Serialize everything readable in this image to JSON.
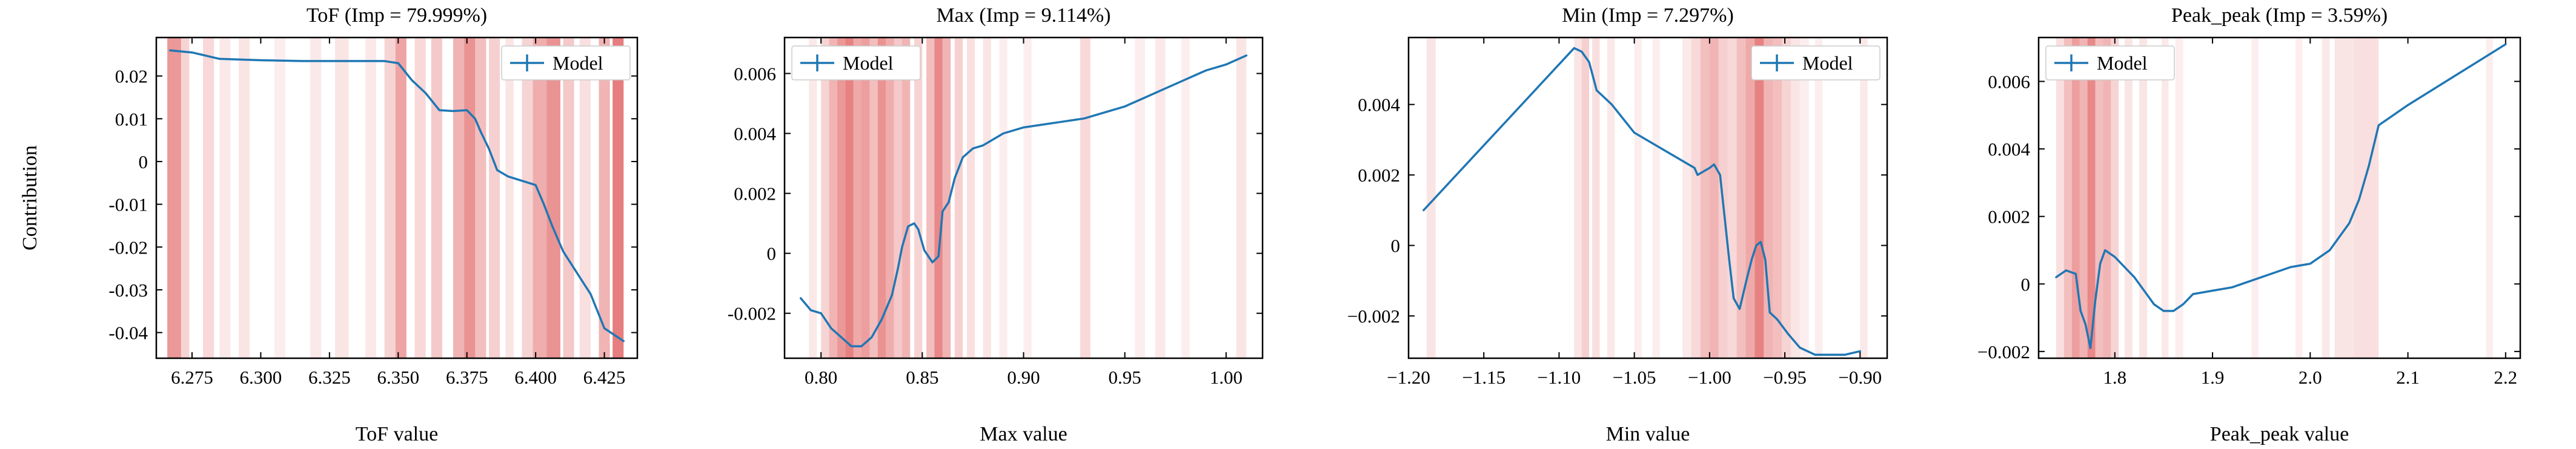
{
  "colors": {
    "line": "#1f77b4",
    "band": "#d62728",
    "frame": "#000000"
  },
  "chart_data": [
    {
      "type": "line",
      "title": "ToF (Imp = 79.999%)",
      "xlabel": "ToF value",
      "ylabel": "Contribution",
      "xlim": [
        6.262,
        6.437
      ],
      "ylim": [
        -0.046,
        0.029
      ],
      "xticks": [
        6.275,
        6.3,
        6.325,
        6.35,
        6.375,
        6.4,
        6.425
      ],
      "xtick_labels": [
        "6.275",
        "6.300",
        "6.325",
        "6.350",
        "6.375",
        "6.400",
        "6.425"
      ],
      "yticks": [
        -0.04,
        -0.03,
        -0.02,
        -0.01,
        0,
        0.01,
        0.02
      ],
      "ytick_labels": [
        "-0.04",
        "-0.03",
        "-0.02",
        "-0.01",
        "0",
        "0.01",
        "0.02"
      ],
      "legend": {
        "label": "Model",
        "placement": "top-right"
      },
      "series": [
        {
          "name": "Model",
          "x": [
            6.267,
            6.275,
            6.285,
            6.3,
            6.315,
            6.33,
            6.345,
            6.35,
            6.355,
            6.36,
            6.365,
            6.37,
            6.375,
            6.378,
            6.38,
            6.383,
            6.386,
            6.39,
            6.395,
            6.4,
            6.403,
            6.406,
            6.41,
            6.414,
            6.418,
            6.42,
            6.425,
            6.432
          ],
          "y": [
            0.026,
            0.0255,
            0.024,
            0.0237,
            0.0235,
            0.0235,
            0.0235,
            0.023,
            0.019,
            0.016,
            0.012,
            0.0118,
            0.012,
            0.01,
            0.007,
            0.003,
            -0.002,
            -0.0035,
            -0.0045,
            -0.0055,
            -0.01,
            -0.015,
            -0.021,
            -0.025,
            -0.029,
            -0.031,
            -0.039,
            -0.042
          ]
        }
      ],
      "bands": [
        {
          "x0": 6.266,
          "x1": 6.271,
          "a": 0.48
        },
        {
          "x0": 6.271,
          "x1": 6.274,
          "a": 0.2
        },
        {
          "x0": 6.279,
          "x1": 6.283,
          "a": 0.18
        },
        {
          "x0": 6.285,
          "x1": 6.289,
          "a": 0.1
        },
        {
          "x0": 6.292,
          "x1": 6.296,
          "a": 0.12
        },
        {
          "x0": 6.305,
          "x1": 6.309,
          "a": 0.08
        },
        {
          "x0": 6.318,
          "x1": 6.322,
          "a": 0.1
        },
        {
          "x0": 6.327,
          "x1": 6.332,
          "a": 0.12
        },
        {
          "x0": 6.338,
          "x1": 6.342,
          "a": 0.1
        },
        {
          "x0": 6.345,
          "x1": 6.349,
          "a": 0.2
        },
        {
          "x0": 6.349,
          "x1": 6.353,
          "a": 0.42
        },
        {
          "x0": 6.356,
          "x1": 6.36,
          "a": 0.18
        },
        {
          "x0": 6.362,
          "x1": 6.366,
          "a": 0.25
        },
        {
          "x0": 6.37,
          "x1": 6.374,
          "a": 0.35
        },
        {
          "x0": 6.374,
          "x1": 6.378,
          "a": 0.5
        },
        {
          "x0": 6.378,
          "x1": 6.382,
          "a": 0.3
        },
        {
          "x0": 6.383,
          "x1": 6.387,
          "a": 0.22
        },
        {
          "x0": 6.389,
          "x1": 6.392,
          "a": 0.12
        },
        {
          "x0": 6.395,
          "x1": 6.399,
          "a": 0.2
        },
        {
          "x0": 6.399,
          "x1": 6.404,
          "a": 0.38
        },
        {
          "x0": 6.404,
          "x1": 6.409,
          "a": 0.5
        },
        {
          "x0": 6.41,
          "x1": 6.414,
          "a": 0.25
        },
        {
          "x0": 6.416,
          "x1": 6.42,
          "a": 0.15
        },
        {
          "x0": 6.423,
          "x1": 6.427,
          "a": 0.35
        },
        {
          "x0": 6.428,
          "x1": 6.432,
          "a": 0.6
        }
      ]
    },
    {
      "type": "line",
      "title": "Max (Imp = 9.114%)",
      "xlabel": "Max value",
      "ylabel": "",
      "xlim": [
        0.782,
        1.018
      ],
      "ylim": [
        -0.0035,
        0.0072
      ],
      "xticks": [
        0.8,
        0.85,
        0.9,
        0.95,
        1.0
      ],
      "xtick_labels": [
        "0.80",
        "0.85",
        "0.90",
        "0.95",
        "1.00"
      ],
      "yticks": [
        -0.002,
        0,
        0.002,
        0.004,
        0.006
      ],
      "ytick_labels": [
        "-0.002",
        "0",
        "0.002",
        "0.004",
        "0.006"
      ],
      "legend": {
        "label": "Model",
        "placement": "top-left"
      },
      "series": [
        {
          "name": "Model",
          "x": [
            0.79,
            0.795,
            0.8,
            0.805,
            0.81,
            0.815,
            0.82,
            0.825,
            0.83,
            0.835,
            0.838,
            0.84,
            0.843,
            0.846,
            0.848,
            0.851,
            0.855,
            0.858,
            0.86,
            0.863,
            0.866,
            0.87,
            0.875,
            0.88,
            0.885,
            0.89,
            0.9,
            0.91,
            0.92,
            0.93,
            0.94,
            0.95,
            0.96,
            0.97,
            0.98,
            0.99,
            1.0,
            1.01
          ],
          "y": [
            -0.0015,
            -0.0019,
            -0.002,
            -0.0025,
            -0.0028,
            -0.0031,
            -0.0031,
            -0.0028,
            -0.0022,
            -0.0014,
            -0.0005,
            0.0002,
            0.0009,
            0.001,
            0.0008,
            0.0001,
            -0.0003,
            -0.0001,
            0.0014,
            0.0017,
            0.0025,
            0.0032,
            0.0035,
            0.0036,
            0.0038,
            0.004,
            0.0042,
            0.0043,
            0.0044,
            0.0045,
            0.0047,
            0.0049,
            0.0052,
            0.0055,
            0.0058,
            0.0061,
            0.0063,
            0.0066
          ]
        }
      ],
      "bands": [
        {
          "x0": 0.794,
          "x1": 0.798,
          "a": 0.1
        },
        {
          "x0": 0.8,
          "x1": 0.804,
          "a": 0.2
        },
        {
          "x0": 0.804,
          "x1": 0.808,
          "a": 0.35
        },
        {
          "x0": 0.808,
          "x1": 0.812,
          "a": 0.48
        },
        {
          "x0": 0.812,
          "x1": 0.816,
          "a": 0.58
        },
        {
          "x0": 0.816,
          "x1": 0.82,
          "a": 0.4
        },
        {
          "x0": 0.82,
          "x1": 0.824,
          "a": 0.45
        },
        {
          "x0": 0.824,
          "x1": 0.828,
          "a": 0.3
        },
        {
          "x0": 0.828,
          "x1": 0.832,
          "a": 0.5
        },
        {
          "x0": 0.832,
          "x1": 0.836,
          "a": 0.38
        },
        {
          "x0": 0.836,
          "x1": 0.84,
          "a": 0.25
        },
        {
          "x0": 0.84,
          "x1": 0.844,
          "a": 0.35
        },
        {
          "x0": 0.846,
          "x1": 0.85,
          "a": 0.2
        },
        {
          "x0": 0.852,
          "x1": 0.856,
          "a": 0.3
        },
        {
          "x0": 0.856,
          "x1": 0.86,
          "a": 0.55
        },
        {
          "x0": 0.86,
          "x1": 0.864,
          "a": 0.35
        },
        {
          "x0": 0.866,
          "x1": 0.87,
          "a": 0.22
        },
        {
          "x0": 0.872,
          "x1": 0.876,
          "a": 0.15
        },
        {
          "x0": 0.88,
          "x1": 0.884,
          "a": 0.12
        },
        {
          "x0": 0.888,
          "x1": 0.892,
          "a": 0.08
        },
        {
          "x0": 0.9,
          "x1": 0.904,
          "a": 0.08
        },
        {
          "x0": 0.928,
          "x1": 0.933,
          "a": 0.18
        },
        {
          "x0": 0.955,
          "x1": 0.96,
          "a": 0.08
        },
        {
          "x0": 0.965,
          "x1": 0.97,
          "a": 0.1
        },
        {
          "x0": 0.978,
          "x1": 0.982,
          "a": 0.08
        },
        {
          "x0": 1.005,
          "x1": 1.01,
          "a": 0.12
        }
      ]
    },
    {
      "type": "line",
      "title": "Min (Imp = 7.297%)",
      "xlabel": "Min value",
      "ylabel": "",
      "xlim": [
        -1.2,
        -0.882
      ],
      "ylim": [
        -0.0032,
        0.0059
      ],
      "xticks": [
        -1.2,
        -1.15,
        -1.1,
        -1.05,
        -1.0,
        -0.95,
        -0.9
      ],
      "xtick_labels": [
        "−1.20",
        "−1.15",
        "−1.10",
        "−1.05",
        "−1.00",
        "−0.95",
        "−0.90"
      ],
      "yticks": [
        -0.002,
        0,
        0.002,
        0.004
      ],
      "ytick_labels": [
        "−0.002",
        "0",
        "0.002",
        "0.004"
      ],
      "legend": {
        "label": "Model",
        "placement": "top-right"
      },
      "series": [
        {
          "name": "Model",
          "x": [
            -1.19,
            -1.14,
            -1.09,
            -1.085,
            -1.08,
            -1.075,
            -1.07,
            -1.065,
            -1.05,
            -1.03,
            -1.01,
            -1.008,
            -1.004,
            -1.0,
            -0.997,
            -0.993,
            -0.99,
            -0.987,
            -0.984,
            -0.98,
            -0.975,
            -0.972,
            -0.969,
            -0.966,
            -0.963,
            -0.96,
            -0.955,
            -0.948,
            -0.94,
            -0.93,
            -0.92,
            -0.91,
            -0.9
          ],
          "y": [
            0.001,
            0.0033,
            0.0056,
            0.0055,
            0.0052,
            0.0044,
            0.0042,
            0.004,
            0.0032,
            0.0027,
            0.0022,
            0.002,
            0.0021,
            0.0022,
            0.0023,
            0.002,
            0.0008,
            -0.0004,
            -0.0015,
            -0.0018,
            -0.0009,
            -0.0004,
            0.0,
            0.0001,
            -0.0004,
            -0.0019,
            -0.0021,
            -0.0025,
            -0.0029,
            -0.0031,
            -0.0031,
            -0.0031,
            -0.003
          ]
        }
      ],
      "bands": [
        {
          "x0": -1.188,
          "x1": -1.182,
          "a": 0.12
        },
        {
          "x0": -1.09,
          "x1": -1.085,
          "a": 0.12
        },
        {
          "x0": -1.085,
          "x1": -1.08,
          "a": 0.22
        },
        {
          "x0": -1.078,
          "x1": -1.073,
          "a": 0.15
        },
        {
          "x0": -1.068,
          "x1": -1.063,
          "a": 0.1
        },
        {
          "x0": -1.05,
          "x1": -1.045,
          "a": 0.08
        },
        {
          "x0": -1.038,
          "x1": -1.033,
          "a": 0.08
        },
        {
          "x0": -1.018,
          "x1": -1.012,
          "a": 0.1
        },
        {
          "x0": -1.012,
          "x1": -1.006,
          "a": 0.18
        },
        {
          "x0": -1.006,
          "x1": -1.0,
          "a": 0.3
        },
        {
          "x0": -1.0,
          "x1": -0.994,
          "a": 0.35
        },
        {
          "x0": -0.994,
          "x1": -0.988,
          "a": 0.22
        },
        {
          "x0": -0.988,
          "x1": -0.982,
          "a": 0.18
        },
        {
          "x0": -0.982,
          "x1": -0.976,
          "a": 0.3
        },
        {
          "x0": -0.976,
          "x1": -0.97,
          "a": 0.4
        },
        {
          "x0": -0.97,
          "x1": -0.964,
          "a": 0.58
        },
        {
          "x0": -0.964,
          "x1": -0.958,
          "a": 0.35
        },
        {
          "x0": -0.958,
          "x1": -0.952,
          "a": 0.3
        },
        {
          "x0": -0.952,
          "x1": -0.946,
          "a": 0.2
        },
        {
          "x0": -0.946,
          "x1": -0.94,
          "a": 0.12
        },
        {
          "x0": -0.94,
          "x1": -0.934,
          "a": 0.08
        },
        {
          "x0": -0.93,
          "x1": -0.925,
          "a": 0.08
        },
        {
          "x0": -0.9,
          "x1": -0.895,
          "a": 0.1
        }
      ]
    },
    {
      "type": "line",
      "title": "Peak_peak (Imp = 3.59%)",
      "xlabel": "Peak_peak value",
      "ylabel": "",
      "xlim": [
        1.722,
        2.215
      ],
      "ylim": [
        -0.0022,
        0.0073
      ],
      "xticks": [
        1.8,
        1.9,
        2.0,
        2.1,
        2.2
      ],
      "xtick_labels": [
        "1.8",
        "1.9",
        "2.0",
        "2.1",
        "2.2"
      ],
      "yticks": [
        -0.002,
        0,
        0.002,
        0.004,
        0.006
      ],
      "ytick_labels": [
        "−0.002",
        "0",
        "0.002",
        "0.004",
        "0.006"
      ],
      "legend": {
        "label": "Model",
        "placement": "top-left"
      },
      "series": [
        {
          "name": "Model",
          "x": [
            1.74,
            1.75,
            1.76,
            1.765,
            1.77,
            1.775,
            1.78,
            1.785,
            1.79,
            1.795,
            1.8,
            1.81,
            1.82,
            1.83,
            1.84,
            1.85,
            1.86,
            1.87,
            1.88,
            1.9,
            1.92,
            1.94,
            1.96,
            1.98,
            2.0,
            2.02,
            2.04,
            2.05,
            2.06,
            2.07,
            2.1,
            2.15,
            2.2
          ],
          "y": [
            0.0002,
            0.0004,
            0.0003,
            -0.0008,
            -0.0012,
            -0.0019,
            -0.0005,
            0.0006,
            0.001,
            0.0009,
            0.0008,
            0.0005,
            0.0002,
            -0.0002,
            -0.0006,
            -0.0008,
            -0.0008,
            -0.0006,
            -0.0003,
            -0.0002,
            -0.0001,
            0.0001,
            0.0003,
            0.0005,
            0.0006,
            0.001,
            0.0018,
            0.0025,
            0.0035,
            0.0047,
            0.0053,
            0.0062,
            0.0071
          ]
        }
      ],
      "bands": [
        {
          "x0": 1.74,
          "x1": 1.748,
          "a": 0.15
        },
        {
          "x0": 1.748,
          "x1": 1.756,
          "a": 0.3
        },
        {
          "x0": 1.756,
          "x1": 1.764,
          "a": 0.45
        },
        {
          "x0": 1.764,
          "x1": 1.772,
          "a": 0.35
        },
        {
          "x0": 1.772,
          "x1": 1.78,
          "a": 0.55
        },
        {
          "x0": 1.78,
          "x1": 1.788,
          "a": 0.3
        },
        {
          "x0": 1.788,
          "x1": 1.796,
          "a": 0.35
        },
        {
          "x0": 1.796,
          "x1": 1.804,
          "a": 0.2
        },
        {
          "x0": 1.81,
          "x1": 1.818,
          "a": 0.12
        },
        {
          "x0": 1.825,
          "x1": 1.833,
          "a": 0.12
        },
        {
          "x0": 1.848,
          "x1": 1.855,
          "a": 0.1
        },
        {
          "x0": 1.862,
          "x1": 1.87,
          "a": 0.08
        },
        {
          "x0": 1.94,
          "x1": 1.947,
          "a": 0.08
        },
        {
          "x0": 1.985,
          "x1": 1.992,
          "a": 0.08
        },
        {
          "x0": 2.012,
          "x1": 2.02,
          "a": 0.1
        },
        {
          "x0": 2.025,
          "x1": 2.045,
          "a": 0.12
        },
        {
          "x0": 2.045,
          "x1": 2.07,
          "a": 0.15
        },
        {
          "x0": 2.18,
          "x1": 2.187,
          "a": 0.08
        }
      ]
    }
  ]
}
